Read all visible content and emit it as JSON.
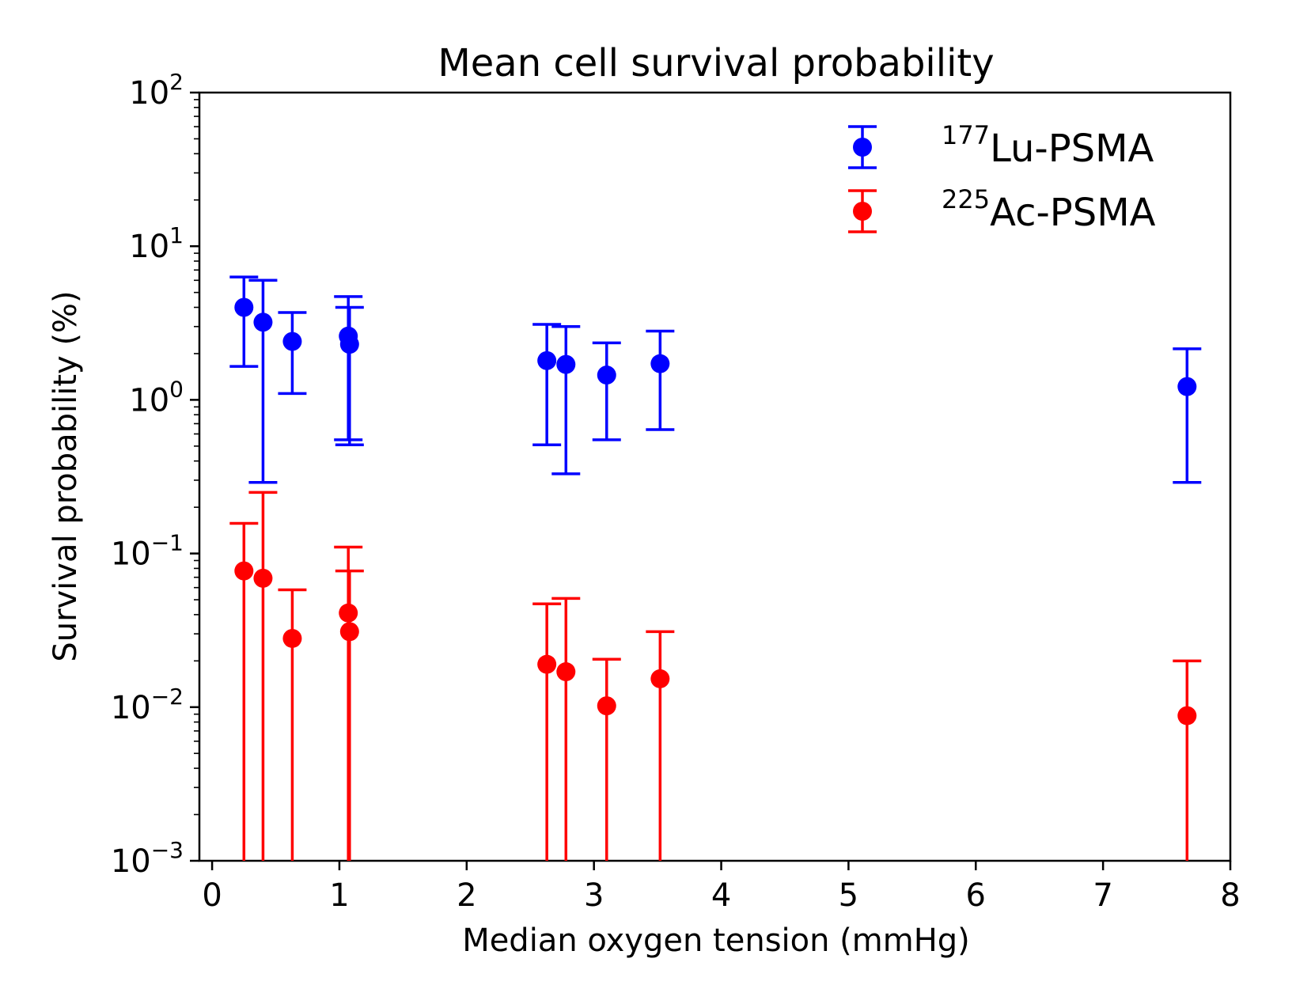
{
  "chart_data": {
    "type": "scatter",
    "title": "Mean cell survival probability",
    "xlabel": "Median oxygen tension (mmHg)",
    "ylabel": "Survival probability (%)",
    "xlim": [
      -0.1,
      8.0
    ],
    "ylim": [
      0.001,
      100
    ],
    "yscale": "log",
    "xticks": [
      "0",
      "1",
      "2",
      "3",
      "4",
      "5",
      "6",
      "7",
      "8"
    ],
    "yticks": [
      {
        "base": "10",
        "exp": "−3"
      },
      {
        "base": "10",
        "exp": "−2"
      },
      {
        "base": "10",
        "exp": "−1"
      },
      {
        "base": "10",
        "exp": "0"
      },
      {
        "base": "10",
        "exp": "1"
      },
      {
        "base": "10",
        "exp": "2"
      }
    ],
    "legend_position": "top-right",
    "series": [
      {
        "name": "Lu-PSMA",
        "isotope": "177",
        "color": "#0000ff",
        "x": [
          0.25,
          0.4,
          0.63,
          1.07,
          1.08,
          2.63,
          2.78,
          3.1,
          3.52,
          7.66
        ],
        "y": [
          4.0,
          3.2,
          2.4,
          2.6,
          2.3,
          1.8,
          1.7,
          1.45,
          1.72,
          1.22
        ],
        "y_low": [
          1.65,
          0.29,
          1.1,
          0.55,
          0.51,
          0.51,
          0.33,
          0.55,
          0.64,
          0.29
        ],
        "y_high": [
          6.3,
          6.0,
          3.7,
          4.7,
          4.0,
          3.1,
          3.0,
          2.35,
          2.8,
          2.15
        ]
      },
      {
        "name": "Ac-PSMA",
        "isotope": "225",
        "color": "#ff0000",
        "x": [
          0.25,
          0.4,
          0.63,
          1.07,
          1.08,
          2.63,
          2.78,
          3.1,
          3.52,
          7.66
        ],
        "y": [
          0.077,
          0.069,
          0.028,
          0.041,
          0.031,
          0.019,
          0.017,
          0.0102,
          0.0153,
          0.0088
        ],
        "y_low": [
          0.001,
          0.001,
          0.001,
          0.001,
          0.001,
          0.001,
          0.001,
          0.001,
          0.001,
          0.001
        ],
        "y_high": [
          0.157,
          0.25,
          0.058,
          0.11,
          0.077,
          0.047,
          0.051,
          0.0205,
          0.031,
          0.02
        ]
      }
    ]
  }
}
